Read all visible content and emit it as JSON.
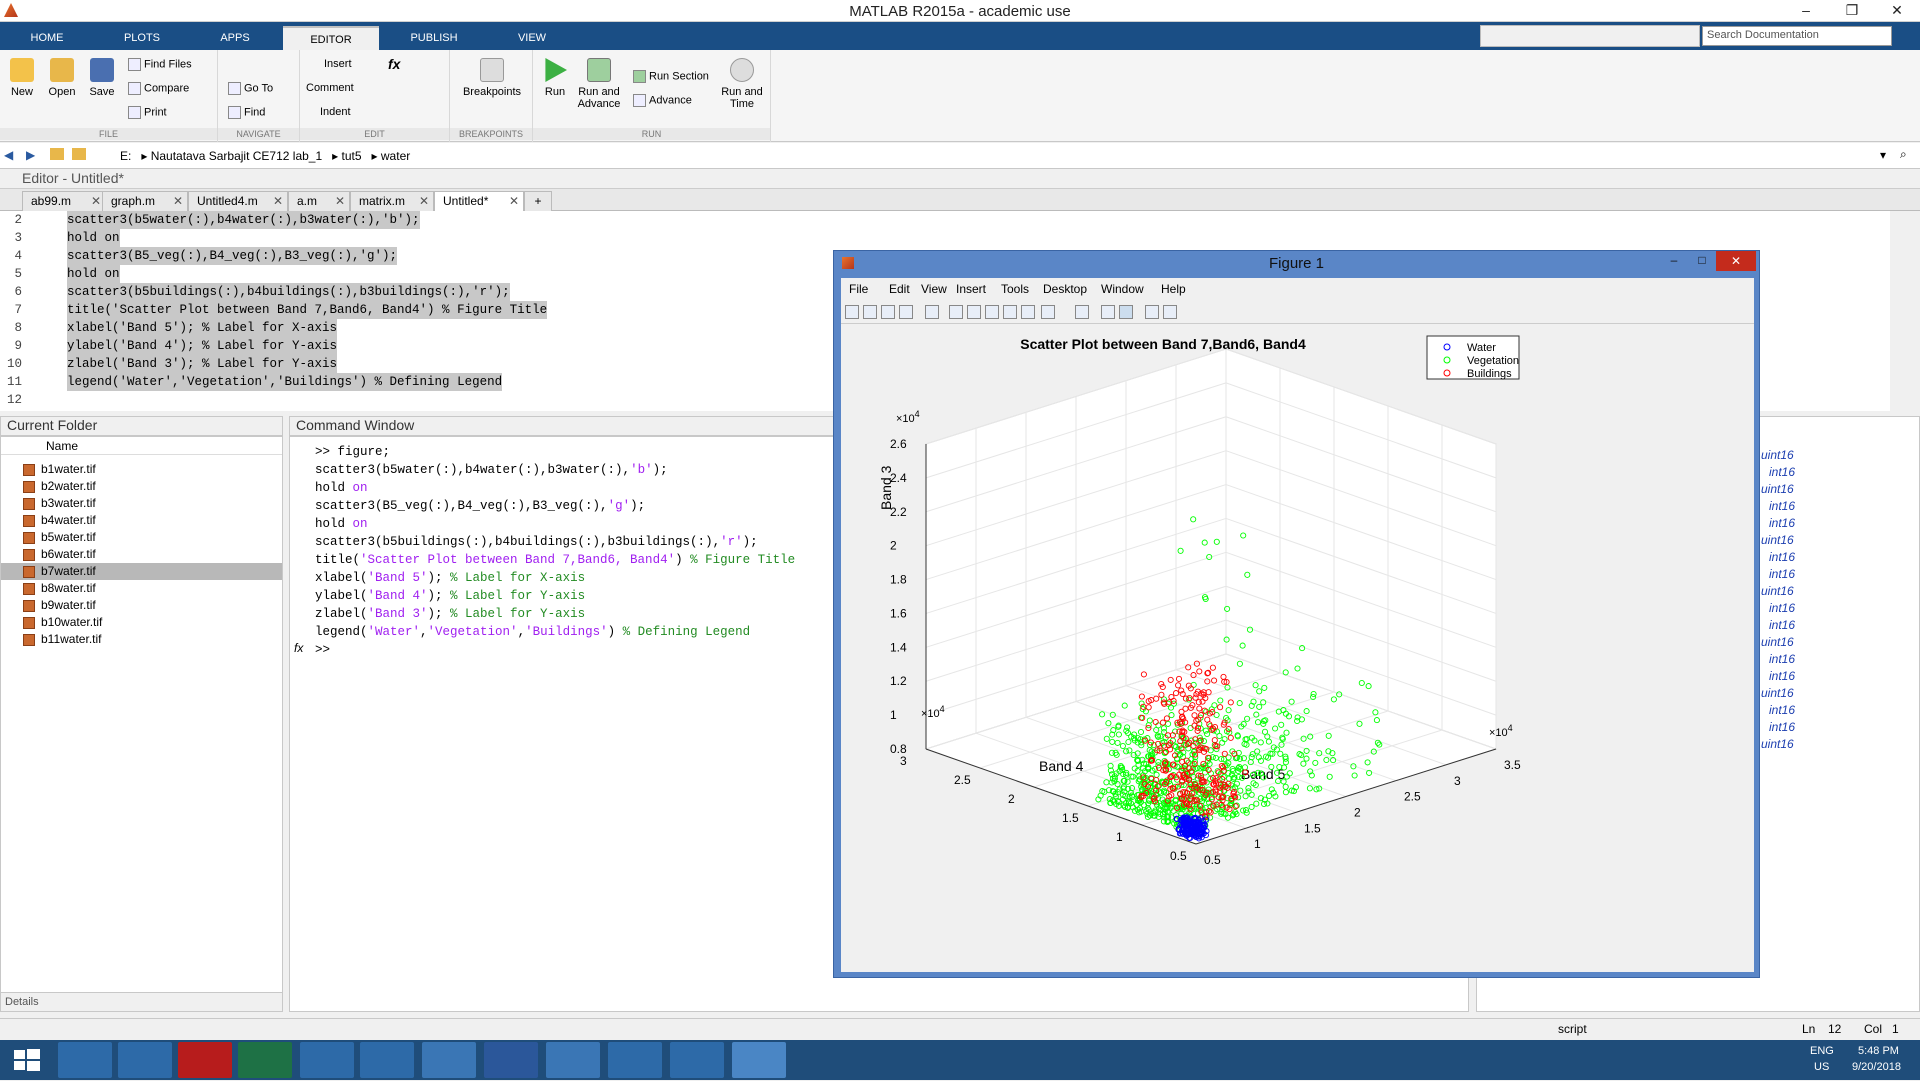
{
  "window": {
    "title": "MATLAB R2015a - academic use"
  },
  "tabs": [
    "HOME",
    "PLOTS",
    "APPS",
    "EDITOR",
    "PUBLISH",
    "VIEW"
  ],
  "search_placeholder": "Search Documentation",
  "toolstrip": {
    "file": {
      "label": "FILE",
      "new": "New",
      "open": "Open",
      "save": "Save",
      "find_files": "Find Files",
      "compare": "Compare",
      "print": "Print"
    },
    "navigate": {
      "label": "NAVIGATE",
      "go_to": "Go To",
      "find": "Find"
    },
    "edit": {
      "label": "EDIT",
      "insert": "Insert",
      "comment": "Comment",
      "indent": "Indent",
      "fx": "fx"
    },
    "breakpoints": {
      "label": "BREAKPOINTS",
      "btn": "Breakpoints"
    },
    "run": {
      "label": "RUN",
      "run": "Run",
      "run_advance": "Run and\nAdvance",
      "run_section": "Run Section",
      "advance": "Advance",
      "run_time": "Run and\nTime"
    }
  },
  "address": {
    "drive": "E:",
    "parts": [
      "Nautatava Sarbajit CE712 lab_1",
      "tut5",
      "water"
    ]
  },
  "editor": {
    "header": "Editor - Untitled*",
    "tabs": [
      "ab99.m",
      "graph.m",
      "Untitled4.m",
      "a.m",
      "matrix.m",
      "Untitled*"
    ],
    "lines": [
      {
        "n": "2",
        "t": "scatter3(b5water(:),b4water(:),b3water(:),'b');"
      },
      {
        "n": "3",
        "t": "hold on"
      },
      {
        "n": "4",
        "t": "scatter3(B5_veg(:),B4_veg(:),B3_veg(:),'g');"
      },
      {
        "n": "5",
        "t": "hold on"
      },
      {
        "n": "6",
        "t": "scatter3(b5buildings(:),b4buildings(:),b3buildings(:),'r');"
      },
      {
        "n": "7",
        "t": "title('Scatter Plot between Band 7,Band6, Band4') % Figure Title"
      },
      {
        "n": "8",
        "t": "xlabel('Band 5'); % Label for X-axis"
      },
      {
        "n": "9",
        "t": "ylabel('Band 4'); % Label for Y-axis"
      },
      {
        "n": "10",
        "t": "zlabel('Band 3'); % Label for Y-axis"
      },
      {
        "n": "11",
        "t": "legend('Water','Vegetation','Buildings') % Defining Legend"
      },
      {
        "n": "12",
        "t": ""
      }
    ]
  },
  "current_folder": {
    "header": "Current Folder",
    "col": "Name",
    "details": "Details",
    "files": [
      "b1water.tif",
      "b2water.tif",
      "b3water.tif",
      "b4water.tif",
      "b5water.tif",
      "b6water.tif",
      "b7water.tif",
      "b8water.tif",
      "b9water.tif",
      "b10water.tif",
      "b11water.tif"
    ],
    "selected": "b7water.tif"
  },
  "command_window": {
    "header": "Command Window",
    "prompt": ">>",
    "fx": "fx"
  },
  "workspace": {
    "types": [
      "uint16",
      "int16",
      "uint16",
      "int16",
      "int16",
      "uint16",
      "int16",
      "int16",
      "uint16",
      "int16",
      "int16",
      "uint16",
      "int16",
      "int16",
      "uint16",
      "int16",
      "int16",
      "uint16"
    ]
  },
  "status": {
    "mode": "script",
    "ln_label": "Ln",
    "ln": "12",
    "col_label": "Col",
    "col": "1"
  },
  "taskbar": {
    "lang1": "ENG",
    "lang2": "US",
    "time": "5:48 PM",
    "date": "9/20/2018"
  },
  "figure": {
    "title": "Figure 1",
    "menus": [
      "File",
      "Edit",
      "View",
      "Insert",
      "Tools",
      "Desktop",
      "Window",
      "Help"
    ]
  },
  "chart_data": {
    "type": "scatter",
    "title": "Scatter Plot between Band 7,Band6, Band4",
    "xlabel": "Band 5",
    "ylabel": "Band 4",
    "zlabel": "Band 3",
    "exponent_label": "×10",
    "exponent": "4",
    "xticks": [
      "0.5",
      "1",
      "1.5",
      "2",
      "2.5",
      "3",
      "3.5"
    ],
    "yticks": [
      "0.5",
      "1",
      "1.5",
      "2",
      "2.5",
      "3"
    ],
    "zticks": [
      "0.8",
      "1",
      "1.2",
      "1.4",
      "1.6",
      "1.8",
      "2",
      "2.2",
      "2.4",
      "2.6"
    ],
    "legend": [
      "Water",
      "Vegetation",
      "Buildings"
    ],
    "legend_position": "top-right",
    "colors": {
      "water": "#0000ff",
      "vegetation": "#00ff00",
      "buildings": "#ff0000"
    },
    "grid": true
  }
}
